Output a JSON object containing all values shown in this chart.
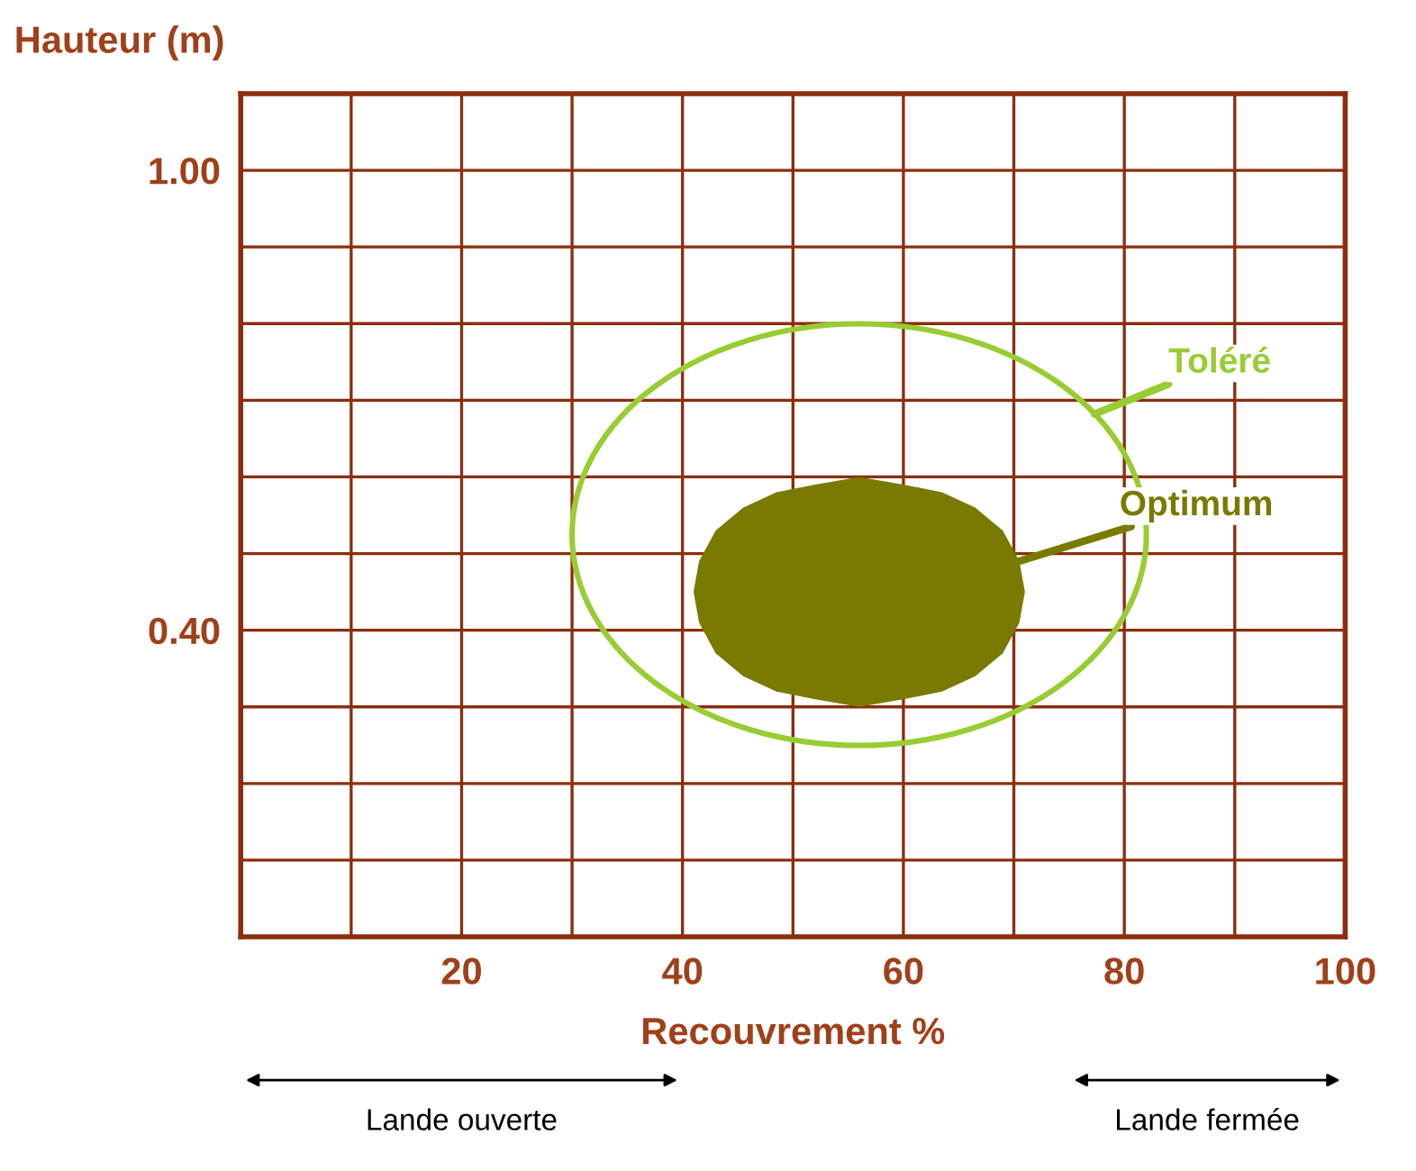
{
  "chart_data": {
    "type": "area",
    "ylabel": "Hauteur (m)",
    "xlabel": "Recouvrement %",
    "xlim": [
      0,
      100
    ],
    "ylim": [
      0,
      1.1
    ],
    "xticks": [
      {
        "value": 10,
        "label": null
      },
      20,
      {
        "value": 30,
        "label": null
      },
      40,
      {
        "value": 50,
        "label": null
      },
      60,
      {
        "value": 70,
        "label": null
      },
      80,
      {
        "value": 90,
        "label": null
      },
      100
    ],
    "yticks": [
      {
        "value": 0.1,
        "label": null
      },
      {
        "value": 0.2,
        "label": null
      },
      {
        "value": 0.3,
        "label": null
      },
      {
        "value": 0.4,
        "label": "0.40"
      },
      {
        "value": 0.5,
        "label": null
      },
      {
        "value": 0.6,
        "label": null
      },
      {
        "value": 0.7,
        "label": null
      },
      {
        "value": 0.8,
        "label": null
      },
      {
        "value": 0.9,
        "label": null
      },
      {
        "value": 1.0,
        "label": "1.00"
      }
    ],
    "grid": true,
    "legend": false,
    "series": [
      {
        "name": "Optimum",
        "color": "#7a7a00",
        "x": [
          71,
          70.5,
          69,
          66.5,
          63.5,
          60,
          56,
          52,
          48.5,
          45.5,
          43,
          41.5,
          41,
          41.5,
          43,
          45.5,
          48.5,
          52,
          56,
          60,
          63.5,
          66.5,
          69,
          70.5,
          71
        ],
        "values": [
          0.45,
          0.49,
          0.53,
          0.56,
          0.58,
          0.59,
          0.6,
          0.59,
          0.58,
          0.56,
          0.53,
          0.49,
          0.45,
          0.41,
          0.37,
          0.34,
          0.32,
          0.31,
          0.3,
          0.31,
          0.32,
          0.34,
          0.37,
          0.41,
          0.45
        ]
      }
    ],
    "annotations": [
      "Toléré",
      "Lande ouverte",
      "Lande fermée"
    ]
  }
}
